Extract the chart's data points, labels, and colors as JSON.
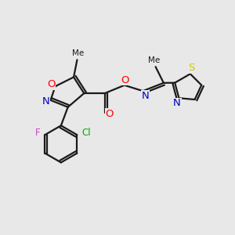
{
  "background_color": "#e8e8e8",
  "bond_color": "#1a1a1a",
  "figsize": [
    3.0,
    3.0
  ],
  "dpi": 100,
  "atom_colors": {
    "O": "#ff0000",
    "N": "#0000cc",
    "F": "#cc44cc",
    "Cl": "#00aa00",
    "S": "#cccc00",
    "C": "#1a1a1a"
  },
  "font_size": 8.5
}
